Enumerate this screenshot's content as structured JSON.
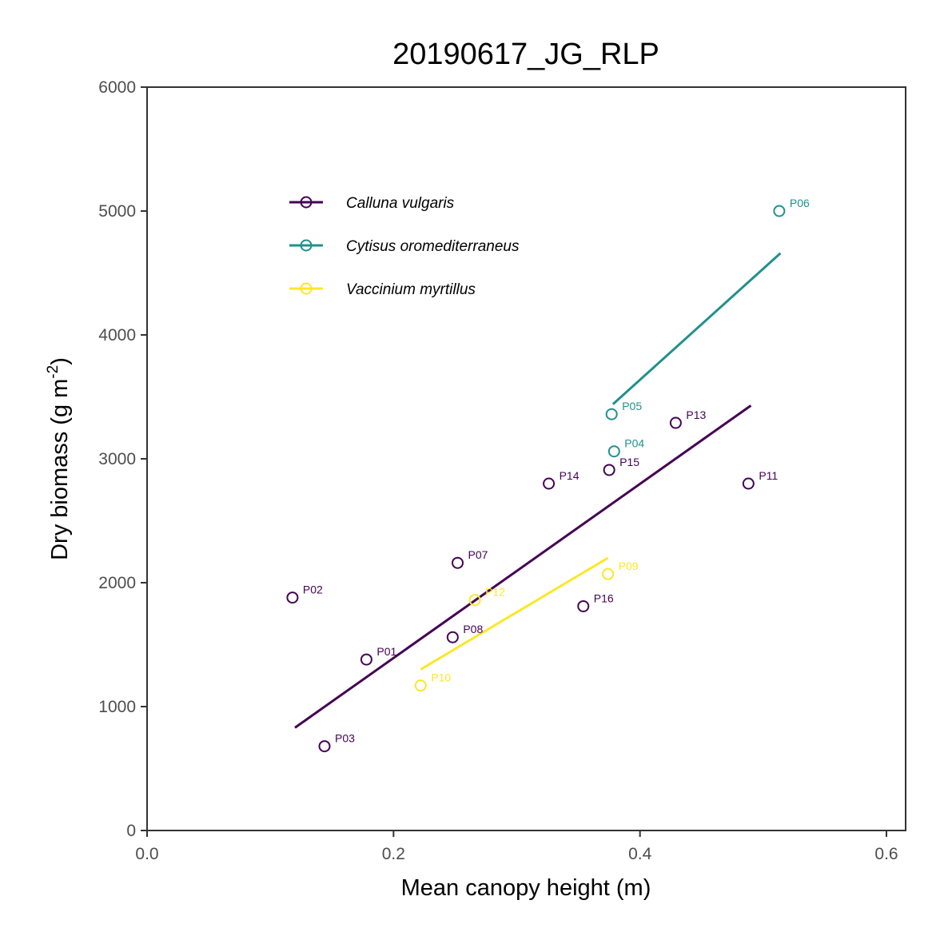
{
  "chart_data": {
    "type": "scatter",
    "title": "20190617_JG_RLP",
    "xlabel": "Mean canopy height (m)",
    "ylabel_text": "Dry biomass (g m",
    "ylabel_sup": "-2",
    "ylabel_close": ")",
    "xlim": [
      0,
      0.6
    ],
    "ylim": [
      0,
      6000
    ],
    "x_ticks": [
      0.0,
      0.2,
      0.4,
      0.6
    ],
    "x_tick_labels": [
      "0.0",
      "0.2",
      "0.4",
      "0.6"
    ],
    "y_ticks": [
      0,
      1000,
      2000,
      3000,
      4000,
      5000,
      6000
    ],
    "y_tick_labels": [
      "0",
      "1000",
      "2000",
      "3000",
      "4000",
      "5000",
      "6000"
    ],
    "grid": false,
    "legend_position": "top-left",
    "series": [
      {
        "name": "Calluna vulgaris",
        "color": "#440154",
        "points": [
          {
            "label": "P01",
            "x": 0.178,
            "y": 1380
          },
          {
            "label": "P02",
            "x": 0.118,
            "y": 1880
          },
          {
            "label": "P03",
            "x": 0.144,
            "y": 680
          },
          {
            "label": "P07",
            "x": 0.252,
            "y": 2160
          },
          {
            "label": "P08",
            "x": 0.248,
            "y": 1560
          },
          {
            "label": "P11",
            "x": 0.488,
            "y": 2800
          },
          {
            "label": "P13",
            "x": 0.429,
            "y": 3290
          },
          {
            "label": "P14",
            "x": 0.326,
            "y": 2800
          },
          {
            "label": "P15",
            "x": 0.375,
            "y": 2910
          },
          {
            "label": "P16",
            "x": 0.354,
            "y": 1810
          }
        ],
        "fit_line": {
          "x": [
            0.12,
            0.49
          ],
          "y": [
            830,
            3430
          ]
        }
      },
      {
        "name": "Cytisus oromediterraneus",
        "color": "#21908C",
        "points": [
          {
            "label": "P04",
            "x": 0.379,
            "y": 3060
          },
          {
            "label": "P05",
            "x": 0.377,
            "y": 3360
          },
          {
            "label": "P06",
            "x": 0.513,
            "y": 5000
          }
        ],
        "fit_line": {
          "x": [
            0.378,
            0.514
          ],
          "y": [
            3440,
            4660
          ]
        }
      },
      {
        "name": "Vaccinium myrtillus",
        "color": "#FDE725",
        "points": [
          {
            "label": "P09",
            "x": 0.374,
            "y": 2070
          },
          {
            "label": "P10",
            "x": 0.222,
            "y": 1170
          },
          {
            "label": "P12",
            "x": 0.266,
            "y": 1860
          }
        ],
        "fit_line": {
          "x": [
            0.222,
            0.374
          ],
          "y": [
            1300,
            2200
          ]
        }
      }
    ]
  }
}
